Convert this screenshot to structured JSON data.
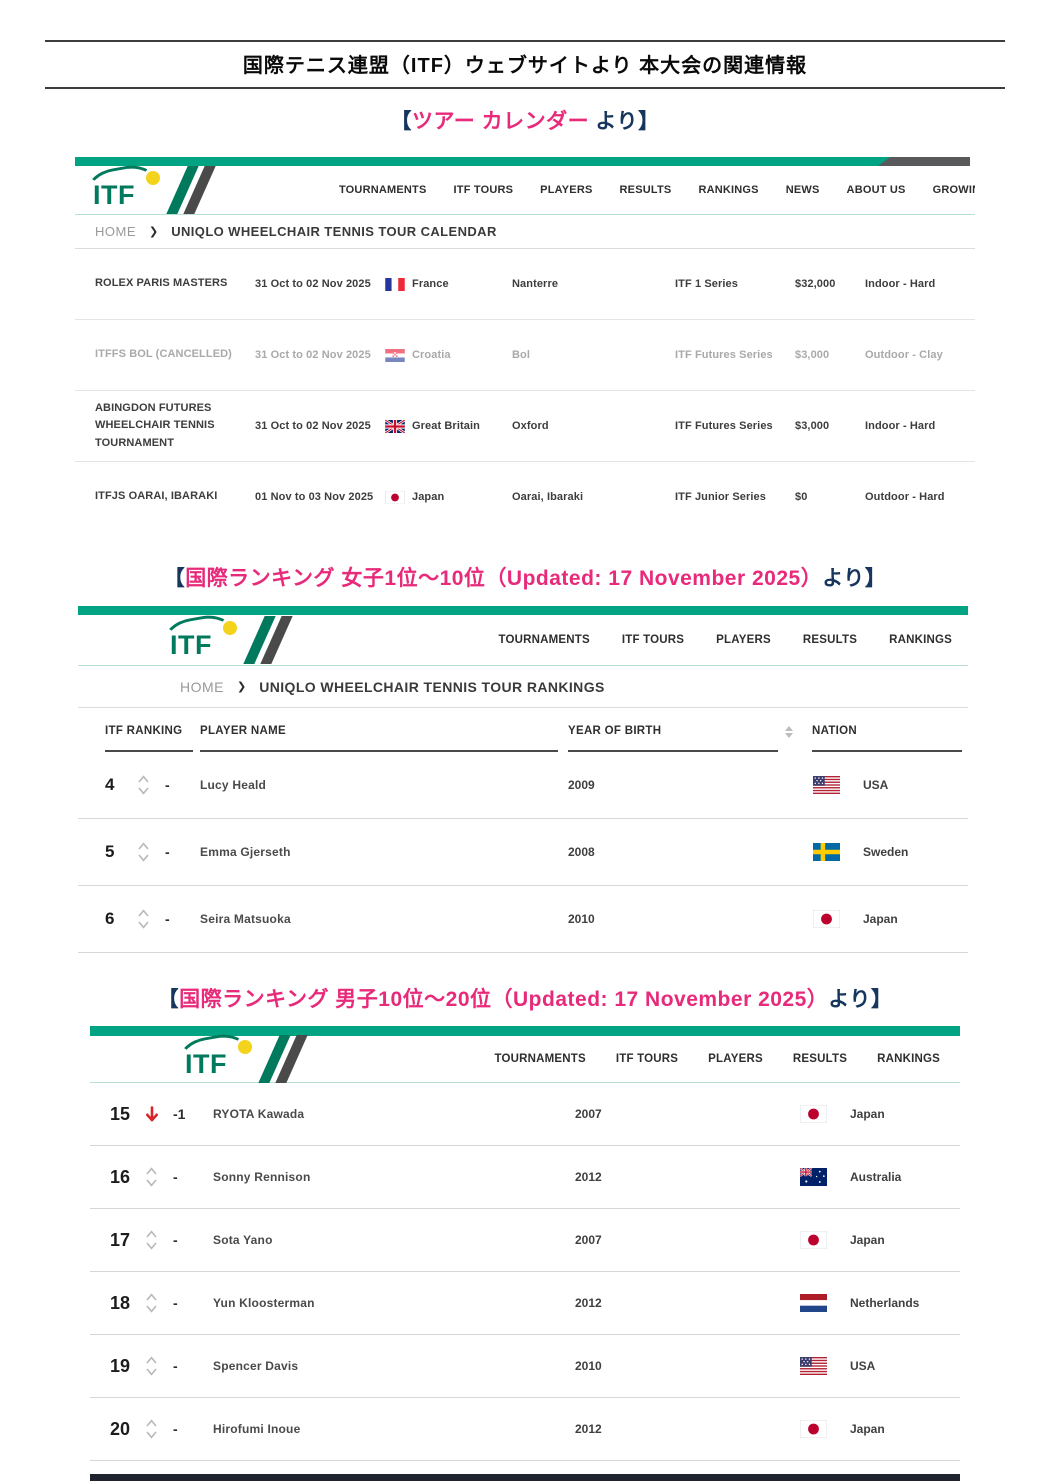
{
  "doc": {
    "title": "国際テニス連盟（ITF）ウェブサイトより 本大会の関連情報"
  },
  "brand": {
    "logo_text": "ITF"
  },
  "icons": {
    "chevron_right": "❯"
  },
  "colors": {
    "brand_green": "#00a483",
    "logo_green": "#00795c",
    "topbar_dark": "#58595b",
    "heading_pink": "#e72a7a",
    "heading_navy": "#17365d",
    "rank_down_red": "#d8232a"
  },
  "sections": {
    "calendar": {
      "heading": {
        "prefix": "【",
        "highlight": "ツアー カレンダー",
        "suffix": " より】"
      },
      "nav": [
        "TOURNAMENTS",
        "ITF TOURS",
        "PLAYERS",
        "RESULTS",
        "RANKINGS",
        "NEWS",
        "ABOUT US",
        "GROWING"
      ],
      "breadcrumb": {
        "home": "HOME",
        "current": "UNIQLO WHEELCHAIR TENNIS TOUR CALENDAR"
      },
      "rows": [
        {
          "name": "ROLEX PARIS MASTERS",
          "date": "31 Oct to 02 Nov 2025",
          "flag": "france",
          "country": "France",
          "city": "Nanterre",
          "series": "ITF 1 Series",
          "prize": "$32,000",
          "surface": "Indoor - Hard",
          "cancelled": false
        },
        {
          "name": "ITFFS BOL (CANCELLED)",
          "date": "31 Oct to 02 Nov 2025",
          "flag": "croatia",
          "country": "Croatia",
          "city": "Bol",
          "series": "ITF Futures Series",
          "prize": "$3,000",
          "surface": "Outdoor - Clay",
          "cancelled": true
        },
        {
          "name": "ABINGDON FUTURES WHEELCHAIR TENNIS TOURNAMENT",
          "date": "31 Oct to 02 Nov 2025",
          "flag": "gb",
          "country": "Great Britain",
          "city": "Oxford",
          "series": "ITF Futures Series",
          "prize": "$3,000",
          "surface": "Indoor - Hard",
          "cancelled": false
        },
        {
          "name": "ITFJS OARAI, IBARAKI",
          "date": "01 Nov to 03 Nov 2025",
          "flag": "japan",
          "country": "Japan",
          "city": "Oarai, Ibaraki",
          "series": "ITF Junior Series",
          "prize": "$0",
          "surface": "Outdoor - Hard",
          "cancelled": false
        }
      ]
    },
    "women": {
      "heading": {
        "prefix": "【",
        "highlight": "国際ランキング 女子1位～10位",
        "updated": "（Updated: 17 November 2025）",
        "suffix": "より】"
      },
      "nav": [
        "TOURNAMENTS",
        "ITF TOURS",
        "PLAYERS",
        "RESULTS",
        "RANKINGS"
      ],
      "breadcrumb": {
        "home": "HOME",
        "current": "UNIQLO WHEELCHAIR TENNIS TOUR RANKINGS"
      },
      "columns": {
        "rank": "ITF RANKING",
        "player": "PLAYER NAME",
        "year": "YEAR OF BIRTH",
        "nation": "NATION"
      },
      "rows": [
        {
          "rank": "4",
          "change": "none",
          "delta": "-",
          "player": "Lucy Heald",
          "year": "2009",
          "flag": "usa",
          "nation": "USA"
        },
        {
          "rank": "5",
          "change": "none",
          "delta": "-",
          "player": "Emma Gjerseth",
          "year": "2008",
          "flag": "sweden",
          "nation": "Sweden"
        },
        {
          "rank": "6",
          "change": "none",
          "delta": "-",
          "player": "Seira Matsuoka",
          "year": "2010",
          "flag": "japan",
          "nation": "Japan"
        }
      ]
    },
    "men": {
      "heading": {
        "prefix": "【",
        "highlight": "国際ランキング 男子10位～20位",
        "updated": "（Updated: 17 November 2025）",
        "suffix": "より】"
      },
      "nav": [
        "TOURNAMENTS",
        "ITF TOURS",
        "PLAYERS",
        "RESULTS",
        "RANKINGS"
      ],
      "rows": [
        {
          "rank": "15",
          "change": "down",
          "delta": "-1",
          "player": "RYOTA Kawada",
          "year": "2007",
          "flag": "japan",
          "nation": "Japan"
        },
        {
          "rank": "16",
          "change": "none",
          "delta": "-",
          "player": "Sonny Rennison",
          "year": "2012",
          "flag": "australia",
          "nation": "Australia"
        },
        {
          "rank": "17",
          "change": "none",
          "delta": "-",
          "player": "Sota Yano",
          "year": "2007",
          "flag": "japan",
          "nation": "Japan"
        },
        {
          "rank": "18",
          "change": "none",
          "delta": "-",
          "player": "Yun Kloosterman",
          "year": "2012",
          "flag": "netherlands",
          "nation": "Netherlands"
        },
        {
          "rank": "19",
          "change": "none",
          "delta": "-",
          "player": "Spencer Davis",
          "year": "2010",
          "flag": "usa",
          "nation": "USA"
        },
        {
          "rank": "20",
          "change": "none",
          "delta": "-",
          "player": "Hirofumi Inoue",
          "year": "2012",
          "flag": "japan",
          "nation": "Japan"
        }
      ]
    }
  }
}
